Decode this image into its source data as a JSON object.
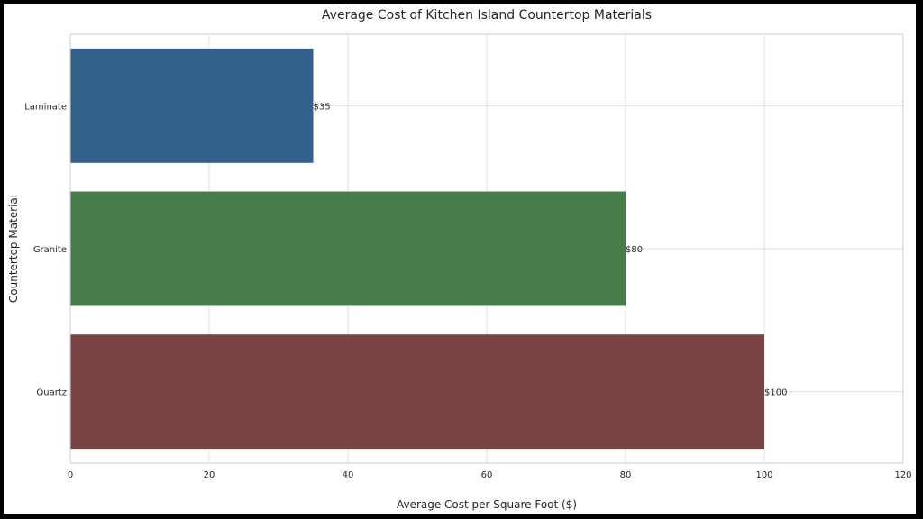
{
  "chart_data": {
    "type": "bar",
    "orientation": "horizontal",
    "title": "Average Cost of Kitchen Island Countertop Materials",
    "xlabel": "Average Cost per Square Foot ($)",
    "ylabel": "Countertop Material",
    "xlim": [
      0,
      120
    ],
    "xticks": [
      0,
      20,
      40,
      60,
      80,
      100,
      120
    ],
    "grid": true,
    "categories": [
      "Laminate",
      "Granite",
      "Quartz"
    ],
    "values": [
      35,
      80,
      100
    ],
    "data_labels": [
      "$35",
      "$80",
      "$100"
    ],
    "colors": [
      "#34608e",
      "#467d4b",
      "#7a4444"
    ]
  }
}
